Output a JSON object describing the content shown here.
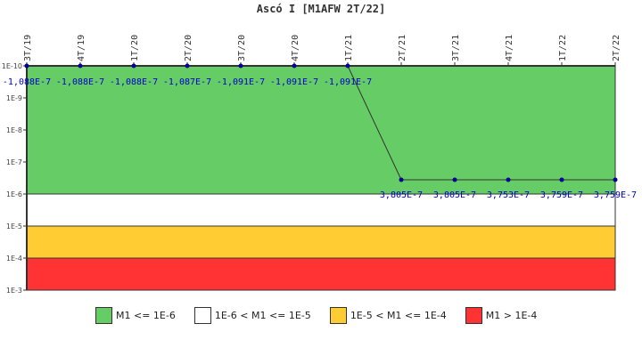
{
  "chart_data": {
    "type": "line",
    "title": "Ascó I [M1AFW 2T/22]",
    "xlabel": "",
    "ylabel": "",
    "y_scale": "log",
    "y_axis_inverted": true,
    "y_ticks": [
      "1E-10",
      "1E-9",
      "1E-8",
      "1E-7",
      "1E-6",
      "1E-5",
      "1E-4",
      "1E-3"
    ],
    "ylim": [
      1e-10,
      0.001
    ],
    "categories": [
      "3T/19",
      "4T/19",
      "1T/20",
      "2T/20",
      "3T/20",
      "4T/20",
      "1T/21",
      "2T/21",
      "3T/21",
      "4T/21",
      "1T/22",
      "2T/22"
    ],
    "series": [
      {
        "name": "M1AFW",
        "values": [
          -1.088e-07,
          -1.088e-07,
          -1.088e-07,
          -1.087e-07,
          -1.091e-07,
          -1.091e-07,
          -1.091e-07,
          3.805e-07,
          3.805e-07,
          3.753e-07,
          3.759e-07,
          3.759e-07
        ],
        "labels": [
          "-1,088E-7",
          "-1,088E-7",
          "-1,088E-7",
          "-1,087E-7",
          "-1,091E-7",
          "-1,091E-7",
          "-1,091E-7",
          "3,805E-7",
          "3,805E-7",
          "3,753E-7",
          "3,759E-7",
          "3,759E-7"
        ],
        "color": "#000099"
      }
    ],
    "bands": [
      {
        "label": "M1 <= 1E-6",
        "from": 1e-10,
        "to": 1e-06,
        "color": "#66cc66"
      },
      {
        "label": "1E-6 < M1 <= 1E-5",
        "from": 1e-06,
        "to": 1e-05,
        "color": "#ffffff"
      },
      {
        "label": "1E-5 < M1 <= 1E-4",
        "from": 1e-05,
        "to": 0.0001,
        "color": "#ffcc33"
      },
      {
        "label": "M1 > 1E-4",
        "from": 0.0001,
        "to": 0.001,
        "color": "#ff3333"
      }
    ],
    "legend_position": "bottom",
    "grid": false
  },
  "header": {
    "title": "Ascó I [M1AFW 2T/22]"
  },
  "legend": {
    "items": [
      {
        "label": "M1 <= 1E-6",
        "color": "#66cc66"
      },
      {
        "label": "1E-6 < M1 <= 1E-5",
        "color": "#ffffff"
      },
      {
        "label": "1E-5 < M1 <= 1E-4",
        "color": "#ffcc33"
      },
      {
        "label": "M1 > 1E-4",
        "color": "#ff3333"
      }
    ]
  }
}
